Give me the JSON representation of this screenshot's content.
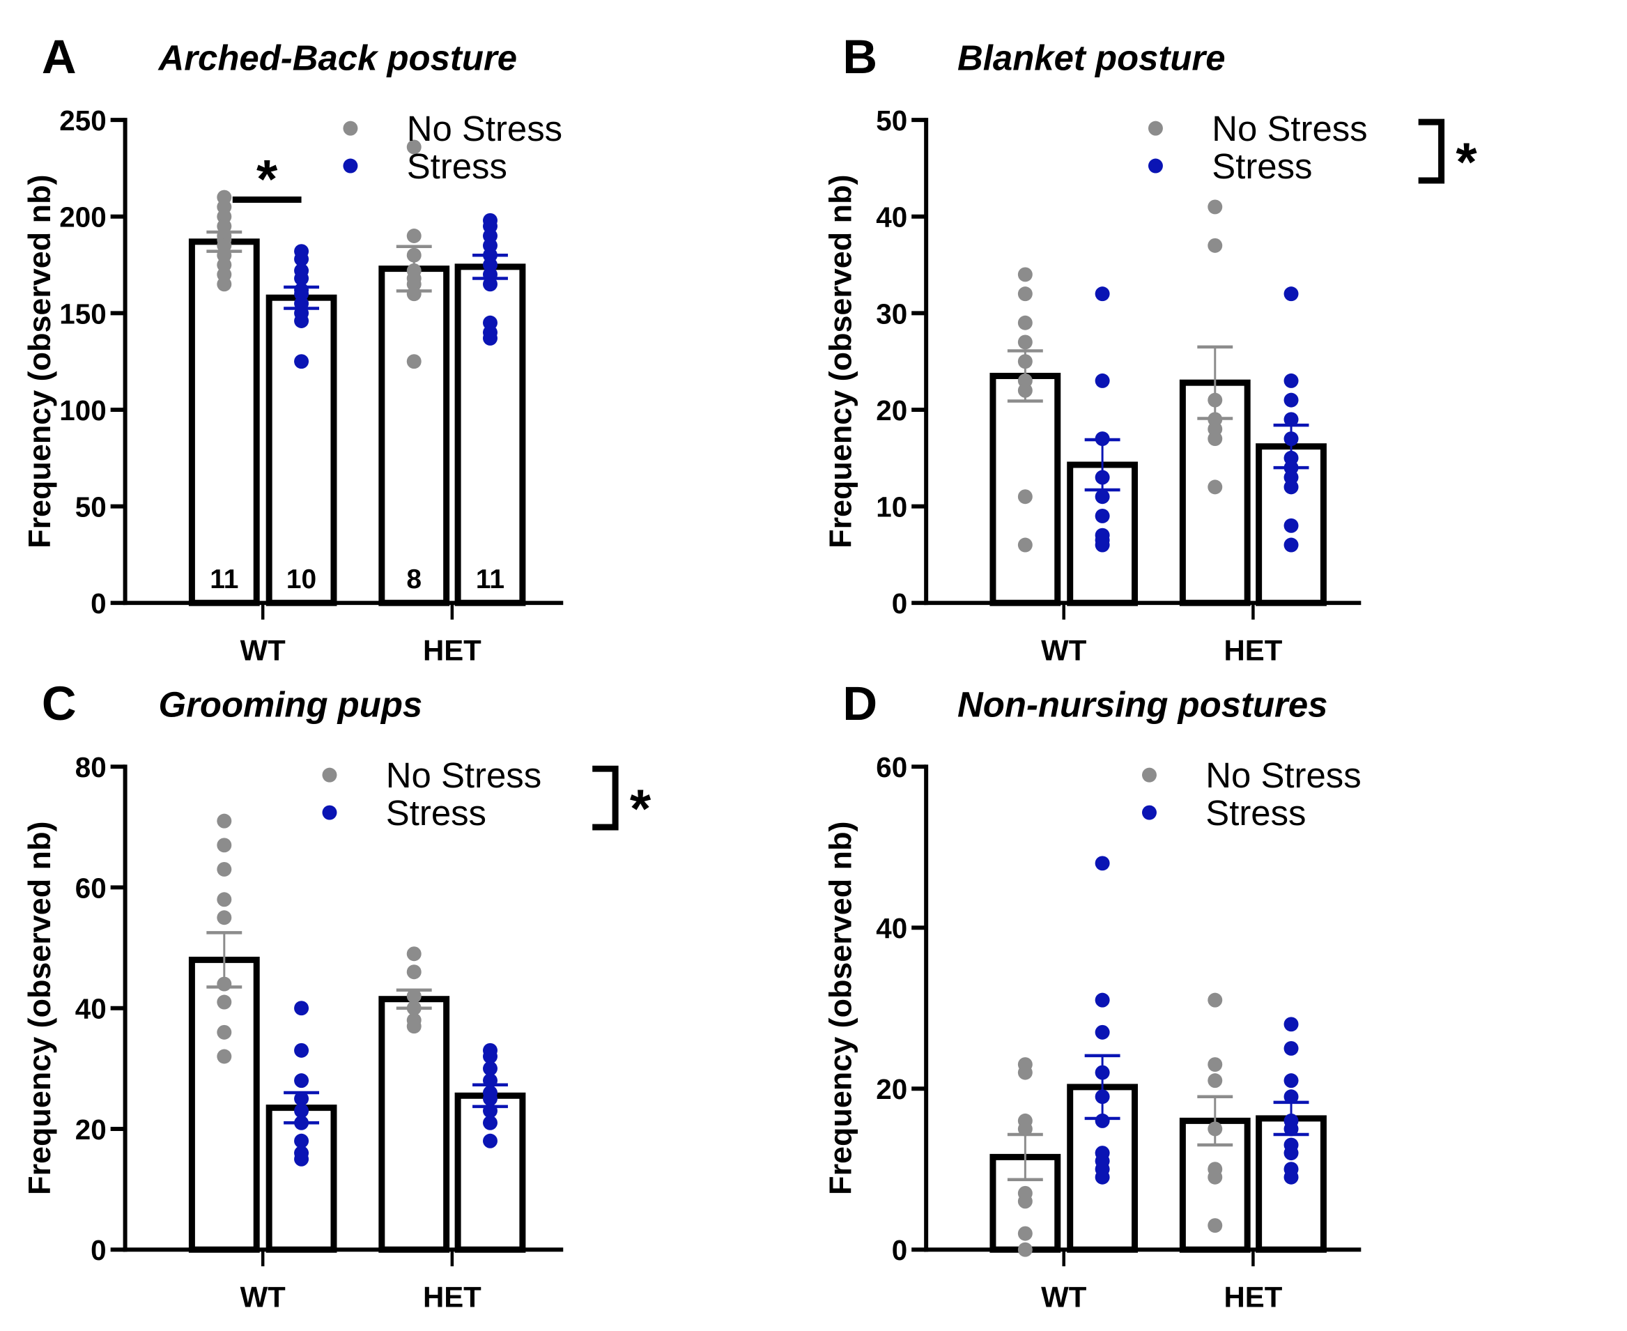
{
  "colors": {
    "no_stress": "#8c8c8c",
    "stress": "#0a14b4",
    "bar_edge": "#000000"
  },
  "chart_data": [
    {
      "type": "bar",
      "panel": "A",
      "title": "Arched-Back posture",
      "ylabel": "Frequency (observed nb)",
      "xlabel": "",
      "ylim": [
        0,
        250
      ],
      "yticks": [
        0,
        50,
        100,
        150,
        200,
        250
      ],
      "categories": [
        "WT",
        "HET"
      ],
      "legend": {
        "entries": [
          "No Stress",
          "Stress"
        ],
        "placement": "top-right",
        "significance": ""
      },
      "significance": [
        {
          "between": "WT No Stress vs WT Stress",
          "label": "*"
        }
      ],
      "n_labels": [
        "11",
        "10",
        "8",
        "11"
      ],
      "series": [
        {
          "name": "No Stress",
          "means": [
            187,
            173
          ],
          "sem": [
            5,
            11.5
          ],
          "points": [
            [
              210,
              205,
              200,
              195,
              190,
              188,
              185,
              180,
              175,
              170,
              165
            ],
            [
              236,
              190,
              180,
              172,
              168,
              165,
              160,
              125
            ]
          ]
        },
        {
          "name": "Stress",
          "means": [
            158,
            174
          ],
          "sem": [
            5.5,
            6
          ],
          "points": [
            [
              182,
              178,
              172,
              168,
              162,
              160,
              155,
              150,
              146,
              125
            ],
            [
              198,
              195,
              190,
              185,
              180,
              175,
              170,
              165,
              145,
              140,
              137
            ]
          ]
        }
      ]
    },
    {
      "type": "bar",
      "panel": "B",
      "title": "Blanket posture",
      "ylabel": "Frequency (observed nb)",
      "xlabel": "",
      "ylim": [
        0,
        50
      ],
      "yticks": [
        0,
        10,
        20,
        30,
        40,
        50
      ],
      "categories": [
        "WT",
        "HET"
      ],
      "legend": {
        "entries": [
          "No Stress",
          "Stress"
        ],
        "placement": "top-right",
        "significance": "*"
      },
      "significance": [],
      "n_labels": [],
      "series": [
        {
          "name": "No Stress",
          "means": [
            23.5,
            22.8
          ],
          "sem": [
            2.6,
            3.7
          ],
          "points": [
            [
              34,
              32,
              29,
              27,
              25,
              23,
              22,
              11,
              6
            ],
            [
              41,
              37,
              21,
              19,
              18,
              17,
              12
            ]
          ]
        },
        {
          "name": "Stress",
          "means": [
            14.3,
            16.2
          ],
          "sem": [
            2.6,
            2.2
          ],
          "points": [
            [
              32,
              23,
              17,
              13,
              11,
              9,
              7,
              6.5,
              6
            ],
            [
              32,
              23,
              21,
              19,
              17,
              15,
              14,
              13,
              12,
              8,
              6
            ]
          ]
        }
      ]
    },
    {
      "type": "bar",
      "panel": "C",
      "title": "Grooming pups",
      "ylabel": "Frequency (observed nb)",
      "xlabel": "",
      "ylim": [
        0,
        80
      ],
      "yticks": [
        0,
        20,
        40,
        60,
        80
      ],
      "categories": [
        "WT",
        "HET"
      ],
      "legend": {
        "entries": [
          "No Stress",
          "Stress"
        ],
        "placement": "top-right",
        "significance": "*"
      },
      "significance": [],
      "n_labels": [],
      "series": [
        {
          "name": "No Stress",
          "means": [
            48,
            41.5
          ],
          "sem": [
            4.5,
            1.5
          ],
          "points": [
            [
              71,
              67,
              63,
              58,
              55,
              44,
              41,
              36,
              32
            ],
            [
              49,
              46,
              42,
              40,
              38,
              37
            ]
          ]
        },
        {
          "name": "Stress",
          "means": [
            23.5,
            25.5
          ],
          "sem": [
            2.5,
            1.8
          ],
          "points": [
            [
              40,
              33,
              28,
              25,
              23,
              21,
              18,
              16,
              15
            ],
            [
              33,
              32,
              30,
              28,
              26,
              25,
              23,
              21,
              18
            ]
          ]
        }
      ]
    },
    {
      "type": "bar",
      "panel": "D",
      "title": "Non-nursing postures",
      "ylabel": "Frequency (observed nb)",
      "xlabel": "",
      "ylim": [
        0,
        60
      ],
      "yticks": [
        0,
        20,
        40,
        60
      ],
      "categories": [
        "WT",
        "HET"
      ],
      "legend": {
        "entries": [
          "No Stress",
          "Stress"
        ],
        "placement": "top-right",
        "significance": ""
      },
      "significance": [],
      "n_labels": [],
      "series": [
        {
          "name": "No Stress",
          "means": [
            11.5,
            16
          ],
          "sem": [
            2.8,
            3
          ],
          "points": [
            [
              23,
              22,
              16,
              15,
              7,
              6,
              2,
              0
            ],
            [
              31,
              23,
              21,
              15,
              10,
              9,
              3
            ]
          ]
        },
        {
          "name": "Stress",
          "means": [
            20.2,
            16.3
          ],
          "sem": [
            3.9,
            2
          ],
          "points": [
            [
              48,
              31,
              27,
              22,
              19,
              16,
              12,
              11,
              10,
              9
            ],
            [
              28,
              25,
              21,
              19,
              16,
              15,
              13,
              12,
              10,
              9
            ]
          ]
        }
      ]
    }
  ]
}
